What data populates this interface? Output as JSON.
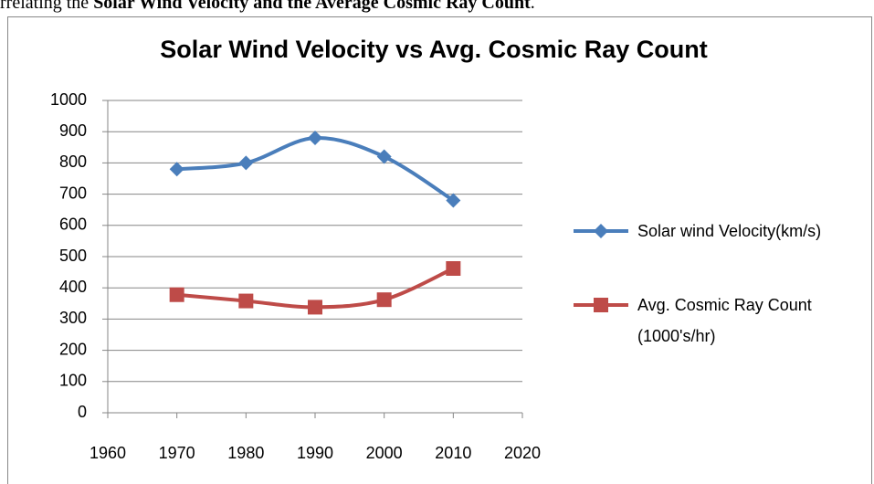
{
  "caption": {
    "prefix": "rrelating the ",
    "bold": "Solar Wind Velocity and the Average Cosmic Ray Count",
    "suffix": "."
  },
  "chart_data": {
    "type": "line",
    "title": "Solar Wind Velocity vs Avg. Cosmic Ray Count",
    "x": [
      1970,
      1980,
      1990,
      2000,
      2010
    ],
    "series": [
      {
        "name": "Solar wind Velocity(km/s)",
        "color": "#4a7ebb",
        "marker": "diamond",
        "values": [
          780,
          800,
          880,
          820,
          680
        ]
      },
      {
        "name": "Avg. Cosmic Ray Count (1000's/hr)",
        "color": "#be4b48",
        "marker": "square",
        "values": [
          378,
          358,
          338,
          362,
          462
        ]
      }
    ],
    "xlim": [
      1960,
      2020
    ],
    "xticks": [
      1960,
      1970,
      1980,
      1990,
      2000,
      2010,
      2020
    ],
    "ylim": [
      0,
      1000
    ],
    "yticks": [
      0,
      100,
      200,
      300,
      400,
      500,
      600,
      700,
      800,
      900,
      1000
    ],
    "grid": true,
    "smooth": true,
    "legend": "right"
  }
}
